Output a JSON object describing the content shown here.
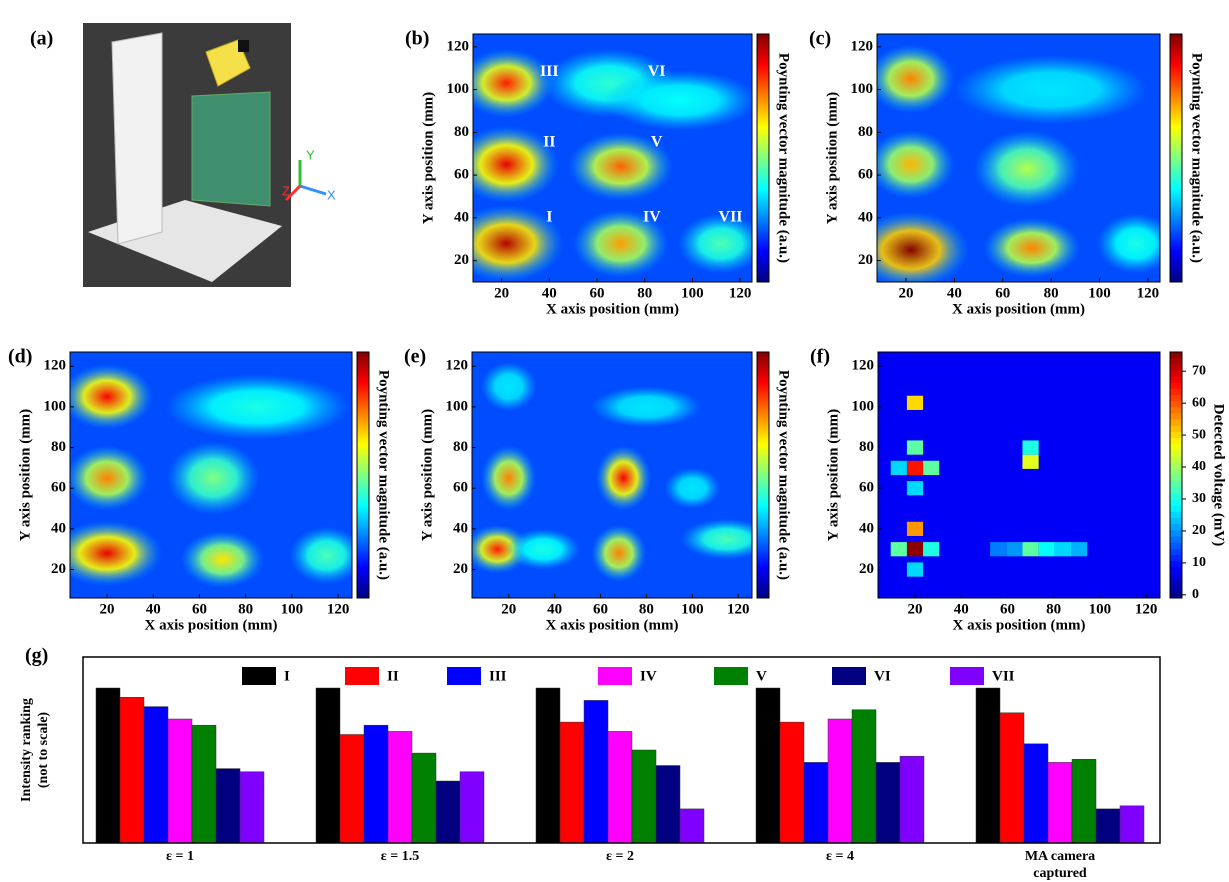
{
  "chart_data": [
    {
      "type": "scene",
      "label": "(a)",
      "axis_names": [
        "X",
        "Y",
        "Z"
      ]
    },
    {
      "type": "heatmap",
      "label": "(b)",
      "xlabel": "X axis position (mm)",
      "ylabel": "Y axis position (mm)",
      "colorbar_label": "Poynting vector magnitude (a.u.)",
      "xlim": [
        8,
        125
      ],
      "ylim": [
        10,
        126
      ],
      "xticks": [
        20,
        40,
        60,
        80,
        100,
        120
      ],
      "yticks": [
        20,
        40,
        60,
        80,
        100,
        120
      ],
      "hotspots": [
        {
          "x": 22,
          "y": 28,
          "intensity": 0.95,
          "rx": 12,
          "ry": 9
        },
        {
          "x": 22,
          "y": 65,
          "intensity": 0.9,
          "rx": 11,
          "ry": 9
        },
        {
          "x": 22,
          "y": 103,
          "intensity": 0.85,
          "rx": 10,
          "ry": 8
        },
        {
          "x": 70,
          "y": 28,
          "intensity": 0.72,
          "rx": 10,
          "ry": 8
        },
        {
          "x": 70,
          "y": 64,
          "intensity": 0.78,
          "rx": 11,
          "ry": 8
        },
        {
          "x": 65,
          "y": 103,
          "intensity": 0.42,
          "rx": 14,
          "ry": 8
        },
        {
          "x": 95,
          "y": 95,
          "intensity": 0.38,
          "rx": 16,
          "ry": 7
        },
        {
          "x": 112,
          "y": 28,
          "intensity": 0.45,
          "rx": 9,
          "ry": 7
        }
      ],
      "annotations": [
        {
          "text": "I",
          "x": 40,
          "y": 40
        },
        {
          "text": "II",
          "x": 40,
          "y": 75
        },
        {
          "text": "III",
          "x": 40,
          "y": 108
        },
        {
          "text": "IV",
          "x": 83,
          "y": 40
        },
        {
          "text": "V",
          "x": 85,
          "y": 75
        },
        {
          "text": "VI",
          "x": 85,
          "y": 108
        },
        {
          "text": "VII",
          "x": 116,
          "y": 40
        }
      ]
    },
    {
      "type": "heatmap",
      "label": "(c)",
      "xlabel": "X axis position (mm)",
      "ylabel": "Y axis position (mm)",
      "colorbar_label": "Poynting vector magnitude (a.u.)",
      "xlim": [
        8,
        125
      ],
      "ylim": [
        10,
        126
      ],
      "xticks": [
        20,
        40,
        60,
        80,
        100,
        120
      ],
      "yticks": [
        20,
        40,
        60,
        80,
        100,
        120
      ],
      "hotspots": [
        {
          "x": 22,
          "y": 25,
          "intensity": 1.0,
          "rx": 12,
          "ry": 9
        },
        {
          "x": 22,
          "y": 65,
          "intensity": 0.7,
          "rx": 9,
          "ry": 8
        },
        {
          "x": 22,
          "y": 105,
          "intensity": 0.75,
          "rx": 9,
          "ry": 8
        },
        {
          "x": 72,
          "y": 26,
          "intensity": 0.75,
          "rx": 10,
          "ry": 7
        },
        {
          "x": 70,
          "y": 63,
          "intensity": 0.55,
          "rx": 11,
          "ry": 9
        },
        {
          "x": 80,
          "y": 100,
          "intensity": 0.35,
          "rx": 20,
          "ry": 8
        },
        {
          "x": 115,
          "y": 28,
          "intensity": 0.4,
          "rx": 8,
          "ry": 7
        }
      ]
    },
    {
      "type": "heatmap",
      "label": "(d)",
      "xlabel": "X axis position (mm)",
      "ylabel": "Y axis position (mm)",
      "colorbar_label": "Poynting vector magnitude (a.u.)",
      "xlim": [
        4,
        126
      ],
      "ylim": [
        6,
        127
      ],
      "xticks": [
        20,
        40,
        60,
        80,
        100,
        120
      ],
      "yticks": [
        20,
        40,
        60,
        80,
        100,
        120
      ],
      "hotspots": [
        {
          "x": 20,
          "y": 28,
          "intensity": 0.9,
          "rx": 12,
          "ry": 8
        },
        {
          "x": 20,
          "y": 65,
          "intensity": 0.75,
          "rx": 9,
          "ry": 8
        },
        {
          "x": 20,
          "y": 105,
          "intensity": 0.88,
          "rx": 10,
          "ry": 8
        },
        {
          "x": 70,
          "y": 25,
          "intensity": 0.65,
          "rx": 9,
          "ry": 7
        },
        {
          "x": 66,
          "y": 65,
          "intensity": 0.5,
          "rx": 10,
          "ry": 9
        },
        {
          "x": 85,
          "y": 100,
          "intensity": 0.4,
          "rx": 20,
          "ry": 8
        },
        {
          "x": 115,
          "y": 27,
          "intensity": 0.45,
          "rx": 8,
          "ry": 7
        }
      ]
    },
    {
      "type": "heatmap",
      "label": "(e)",
      "xlabel": "X axis position (mm)",
      "ylabel": "Y axis position (mm)",
      "colorbar_label": "Poynting vector magnitude (a.u.)",
      "xlim": [
        4,
        126
      ],
      "ylim": [
        6,
        127
      ],
      "xticks": [
        20,
        40,
        60,
        80,
        100,
        120
      ],
      "yticks": [
        20,
        40,
        60,
        80,
        100,
        120
      ],
      "hotspots": [
        {
          "x": 15,
          "y": 30,
          "intensity": 0.85,
          "rx": 7,
          "ry": 6
        },
        {
          "x": 20,
          "y": 65,
          "intensity": 0.75,
          "rx": 6,
          "ry": 8
        },
        {
          "x": 70,
          "y": 65,
          "intensity": 0.88,
          "rx": 6,
          "ry": 8
        },
        {
          "x": 68,
          "y": 28,
          "intensity": 0.75,
          "rx": 6,
          "ry": 7
        },
        {
          "x": 35,
          "y": 30,
          "intensity": 0.4,
          "rx": 8,
          "ry": 5
        },
        {
          "x": 115,
          "y": 35,
          "intensity": 0.45,
          "rx": 10,
          "ry": 5
        },
        {
          "x": 80,
          "y": 100,
          "intensity": 0.35,
          "rx": 12,
          "ry": 5
        },
        {
          "x": 20,
          "y": 110,
          "intensity": 0.35,
          "rx": 6,
          "ry": 6
        },
        {
          "x": 100,
          "y": 60,
          "intensity": 0.35,
          "rx": 6,
          "ry": 5
        }
      ]
    },
    {
      "type": "grid-heatmap",
      "label": "(f)",
      "xlabel": "X axis position (mm)",
      "ylabel": "Y axis position (mm)",
      "colorbar_label": "Detected voltage (mV)",
      "xlim": [
        4,
        126
      ],
      "ylim": [
        6,
        127
      ],
      "xticks": [
        20,
        40,
        60,
        80,
        100,
        120
      ],
      "yticks": [
        20,
        40,
        60,
        80,
        100,
        120
      ],
      "clim": [
        -1,
        76
      ],
      "colorbar_ticks": [
        0,
        10,
        20,
        30,
        40,
        50,
        60,
        70
      ],
      "background": 8,
      "cells": [
        {
          "x": 20,
          "y": 30,
          "value": 75
        },
        {
          "x": 20,
          "y": 40,
          "value": 55
        },
        {
          "x": 20,
          "y": 70,
          "value": 65
        },
        {
          "x": 20,
          "y": 102,
          "value": 50
        },
        {
          "x": 20,
          "y": 80,
          "value": 35
        },
        {
          "x": 20,
          "y": 60,
          "value": 25
        },
        {
          "x": 20,
          "y": 20,
          "value": 25
        },
        {
          "x": 13,
          "y": 30,
          "value": 35
        },
        {
          "x": 13,
          "y": 70,
          "value": 25
        },
        {
          "x": 27,
          "y": 30,
          "value": 30
        },
        {
          "x": 27,
          "y": 70,
          "value": 35
        },
        {
          "x": 70,
          "y": 73,
          "value": 45
        },
        {
          "x": 70,
          "y": 80,
          "value": 30
        },
        {
          "x": 70,
          "y": 30,
          "value": 35
        },
        {
          "x": 77,
          "y": 30,
          "value": 28
        },
        {
          "x": 84,
          "y": 30,
          "value": 25
        },
        {
          "x": 91,
          "y": 30,
          "value": 22
        },
        {
          "x": 63,
          "y": 30,
          "value": 20
        },
        {
          "x": 56,
          "y": 30,
          "value": 18
        }
      ]
    },
    {
      "type": "bar",
      "label": "(g)",
      "ylabel": "Intensity ranking (not to scale)",
      "ylim": [
        0,
        6
      ],
      "categories": [
        "ε = 1",
        "ε = 1.5",
        "ε = 2",
        "ε = 4",
        "MA camera captured"
      ],
      "series": [
        {
          "name": "I",
          "color": "#000000",
          "values": [
            5.0,
            5.0,
            5.0,
            5.0,
            5.0
          ]
        },
        {
          "name": "II",
          "color": "#ff0000",
          "values": [
            4.7,
            3.5,
            3.9,
            3.9,
            4.2
          ]
        },
        {
          "name": "III",
          "color": "#0000ff",
          "values": [
            4.4,
            3.8,
            4.6,
            2.6,
            3.2
          ]
        },
        {
          "name": "IV",
          "color": "#ff00ff",
          "values": [
            4.0,
            3.6,
            3.6,
            4.0,
            2.6
          ]
        },
        {
          "name": "V",
          "color": "#008000",
          "values": [
            3.8,
            2.9,
            3.0,
            4.3,
            2.7
          ]
        },
        {
          "name": "VI",
          "color": "#000080",
          "values": [
            2.4,
            2.0,
            2.5,
            2.6,
            1.1
          ]
        },
        {
          "name": "VII",
          "color": "#8000ff",
          "values": [
            2.3,
            2.3,
            1.1,
            2.8,
            1.2
          ]
        }
      ]
    }
  ]
}
